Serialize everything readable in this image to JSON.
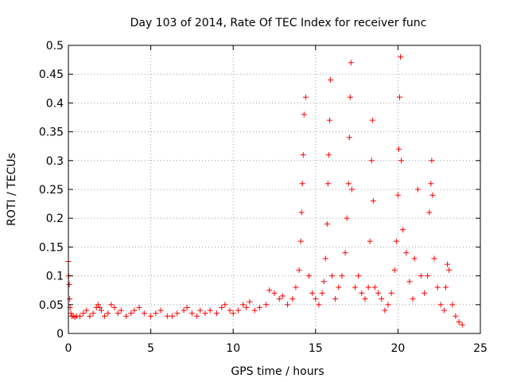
{
  "chart_data": {
    "type": "scatter",
    "title": "Day 103 of 2014, Rate Of TEC Index for receiver func",
    "xlabel": "GPS time / hours",
    "ylabel": "ROTI / TECUs",
    "xlim": [
      0,
      25
    ],
    "ylim": [
      0,
      0.5
    ],
    "x_ticks": [
      0,
      5,
      10,
      15,
      20,
      25
    ],
    "x_tick_labels": [
      "0",
      "5",
      "10",
      "15",
      "20",
      "25"
    ],
    "y_ticks": [
      0,
      0.05,
      0.1,
      0.15,
      0.2,
      0.25,
      0.3,
      0.35,
      0.4,
      0.45,
      0.5
    ],
    "y_tick_labels": [
      "0",
      "0.05",
      "0.1",
      "0.15",
      "0.2",
      "0.25",
      "0.3",
      "0.35",
      "0.4",
      "0.45",
      "0.5"
    ],
    "grid": true,
    "marker": "+",
    "series": [
      {
        "name": "ROTI",
        "color": "#ff0000",
        "x": [
          0.0,
          0.02,
          0.05,
          0.08,
          0.1,
          0.15,
          0.2,
          0.3,
          0.4,
          0.5,
          0.7,
          0.9,
          1.1,
          1.3,
          1.5,
          1.7,
          1.8,
          1.9,
          2.0,
          2.2,
          2.4,
          2.6,
          2.8,
          3.0,
          3.2,
          3.5,
          3.8,
          4.0,
          4.3,
          4.6,
          5.0,
          5.3,
          5.6,
          6.0,
          6.3,
          6.6,
          7.0,
          7.2,
          7.5,
          7.8,
          8.0,
          8.3,
          8.6,
          9.0,
          9.3,
          9.5,
          9.8,
          10.0,
          10.3,
          10.6,
          10.8,
          11.0,
          11.3,
          11.6,
          12.0,
          12.2,
          12.5,
          12.8,
          13.0,
          13.3,
          13.6,
          13.8,
          14.0,
          14.1,
          14.15,
          14.2,
          14.25,
          14.3,
          14.4,
          14.6,
          14.8,
          15.0,
          15.2,
          15.4,
          15.5,
          15.6,
          15.7,
          15.75,
          15.8,
          15.85,
          15.9,
          16.0,
          16.2,
          16.4,
          16.6,
          16.8,
          16.9,
          17.0,
          17.05,
          17.1,
          17.15,
          17.2,
          17.4,
          17.6,
          17.8,
          18.0,
          18.2,
          18.3,
          18.4,
          18.45,
          18.5,
          18.6,
          18.8,
          19.0,
          19.2,
          19.4,
          19.6,
          19.8,
          19.9,
          20.0,
          20.05,
          20.1,
          20.15,
          20.2,
          20.3,
          20.5,
          20.7,
          20.9,
          21.0,
          21.2,
          21.4,
          21.6,
          21.8,
          21.9,
          22.0,
          22.05,
          22.1,
          22.2,
          22.4,
          22.6,
          22.8,
          22.9,
          23.0,
          23.1,
          23.3,
          23.5,
          23.7,
          23.9
        ],
        "y": [
          0.125,
          0.1,
          0.085,
          0.06,
          0.045,
          0.035,
          0.03,
          0.03,
          0.028,
          0.03,
          0.03,
          0.035,
          0.04,
          0.03,
          0.035,
          0.045,
          0.05,
          0.045,
          0.04,
          0.03,
          0.035,
          0.05,
          0.045,
          0.035,
          0.04,
          0.03,
          0.035,
          0.04,
          0.045,
          0.035,
          0.03,
          0.035,
          0.04,
          0.03,
          0.03,
          0.035,
          0.04,
          0.045,
          0.035,
          0.03,
          0.04,
          0.035,
          0.04,
          0.035,
          0.045,
          0.05,
          0.04,
          0.035,
          0.04,
          0.05,
          0.045,
          0.055,
          0.04,
          0.045,
          0.05,
          0.075,
          0.07,
          0.06,
          0.065,
          0.05,
          0.06,
          0.08,
          0.11,
          0.16,
          0.21,
          0.26,
          0.31,
          0.38,
          0.41,
          0.1,
          0.07,
          0.06,
          0.05,
          0.07,
          0.09,
          0.13,
          0.19,
          0.26,
          0.31,
          0.37,
          0.44,
          0.1,
          0.06,
          0.08,
          0.1,
          0.14,
          0.2,
          0.26,
          0.34,
          0.41,
          0.47,
          0.25,
          0.08,
          0.1,
          0.07,
          0.06,
          0.08,
          0.16,
          0.3,
          0.37,
          0.23,
          0.08,
          0.07,
          0.06,
          0.04,
          0.05,
          0.07,
          0.11,
          0.16,
          0.24,
          0.32,
          0.41,
          0.48,
          0.3,
          0.18,
          0.14,
          0.09,
          0.06,
          0.13,
          0.25,
          0.1,
          0.07,
          0.1,
          0.21,
          0.26,
          0.3,
          0.24,
          0.13,
          0.08,
          0.05,
          0.04,
          0.08,
          0.12,
          0.11,
          0.05,
          0.03,
          0.02,
          0.015
        ]
      }
    ]
  }
}
